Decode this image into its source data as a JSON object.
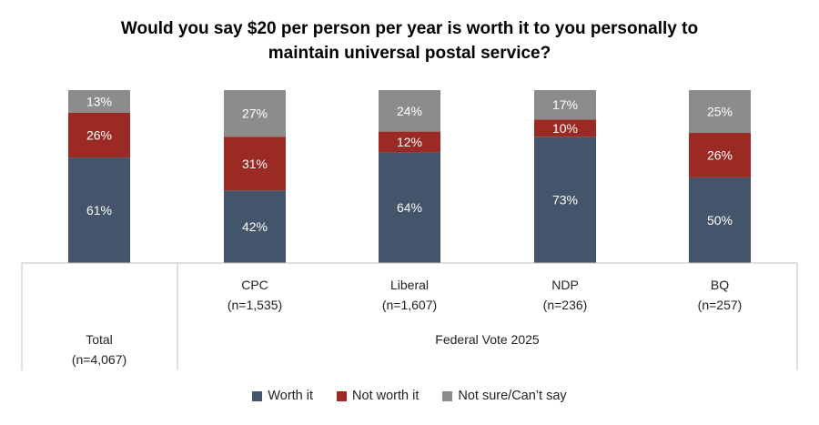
{
  "title": {
    "line1": "Would you say $20 per person per year is worth it to you personally to",
    "line2": "maintain universal postal service?"
  },
  "colors": {
    "worth_it": "#44546a",
    "not_worth_it": "#9b2a24",
    "not_sure": "#8c8c8c",
    "grid": "#bfbfbf"
  },
  "chart_data": {
    "type": "bar",
    "stacked": true,
    "percent_stacked": true,
    "title": "Would you say $20 per person per year is worth it to you personally to maintain universal postal service?",
    "categories": [
      {
        "name": "Total",
        "n": "(n=4,067)",
        "group": ""
      },
      {
        "name": "CPC",
        "n": "(n=1,535)",
        "group": "Federal Vote 2025"
      },
      {
        "name": "Liberal",
        "n": "(n=1,607)",
        "group": "Federal Vote 2025"
      },
      {
        "name": "NDP",
        "n": "(n=236)",
        "group": "Federal Vote 2025"
      },
      {
        "name": "BQ",
        "n": "(n=257)",
        "group": "Federal Vote 2025"
      }
    ],
    "group_label": "Federal Vote 2025",
    "series": [
      {
        "name": "Worth it",
        "color": "#44546a",
        "values": [
          61,
          42,
          64,
          73,
          50
        ],
        "labels": [
          "61%",
          "42%",
          "64%",
          "73%",
          "50%"
        ]
      },
      {
        "name": "Not worth it",
        "color": "#9b2a24",
        "values": [
          26,
          31,
          12,
          10,
          26
        ],
        "labels": [
          "26%",
          "31%",
          "12%",
          "10%",
          "26%"
        ]
      },
      {
        "name": "Not sure/Can’t say",
        "color": "#8c8c8c",
        "values": [
          13,
          27,
          24,
          17,
          25
        ],
        "labels": [
          "13%",
          "27%",
          "24%",
          "17%",
          "25%"
        ]
      }
    ],
    "ylim": [
      0,
      100
    ],
    "legend": "bottom"
  }
}
